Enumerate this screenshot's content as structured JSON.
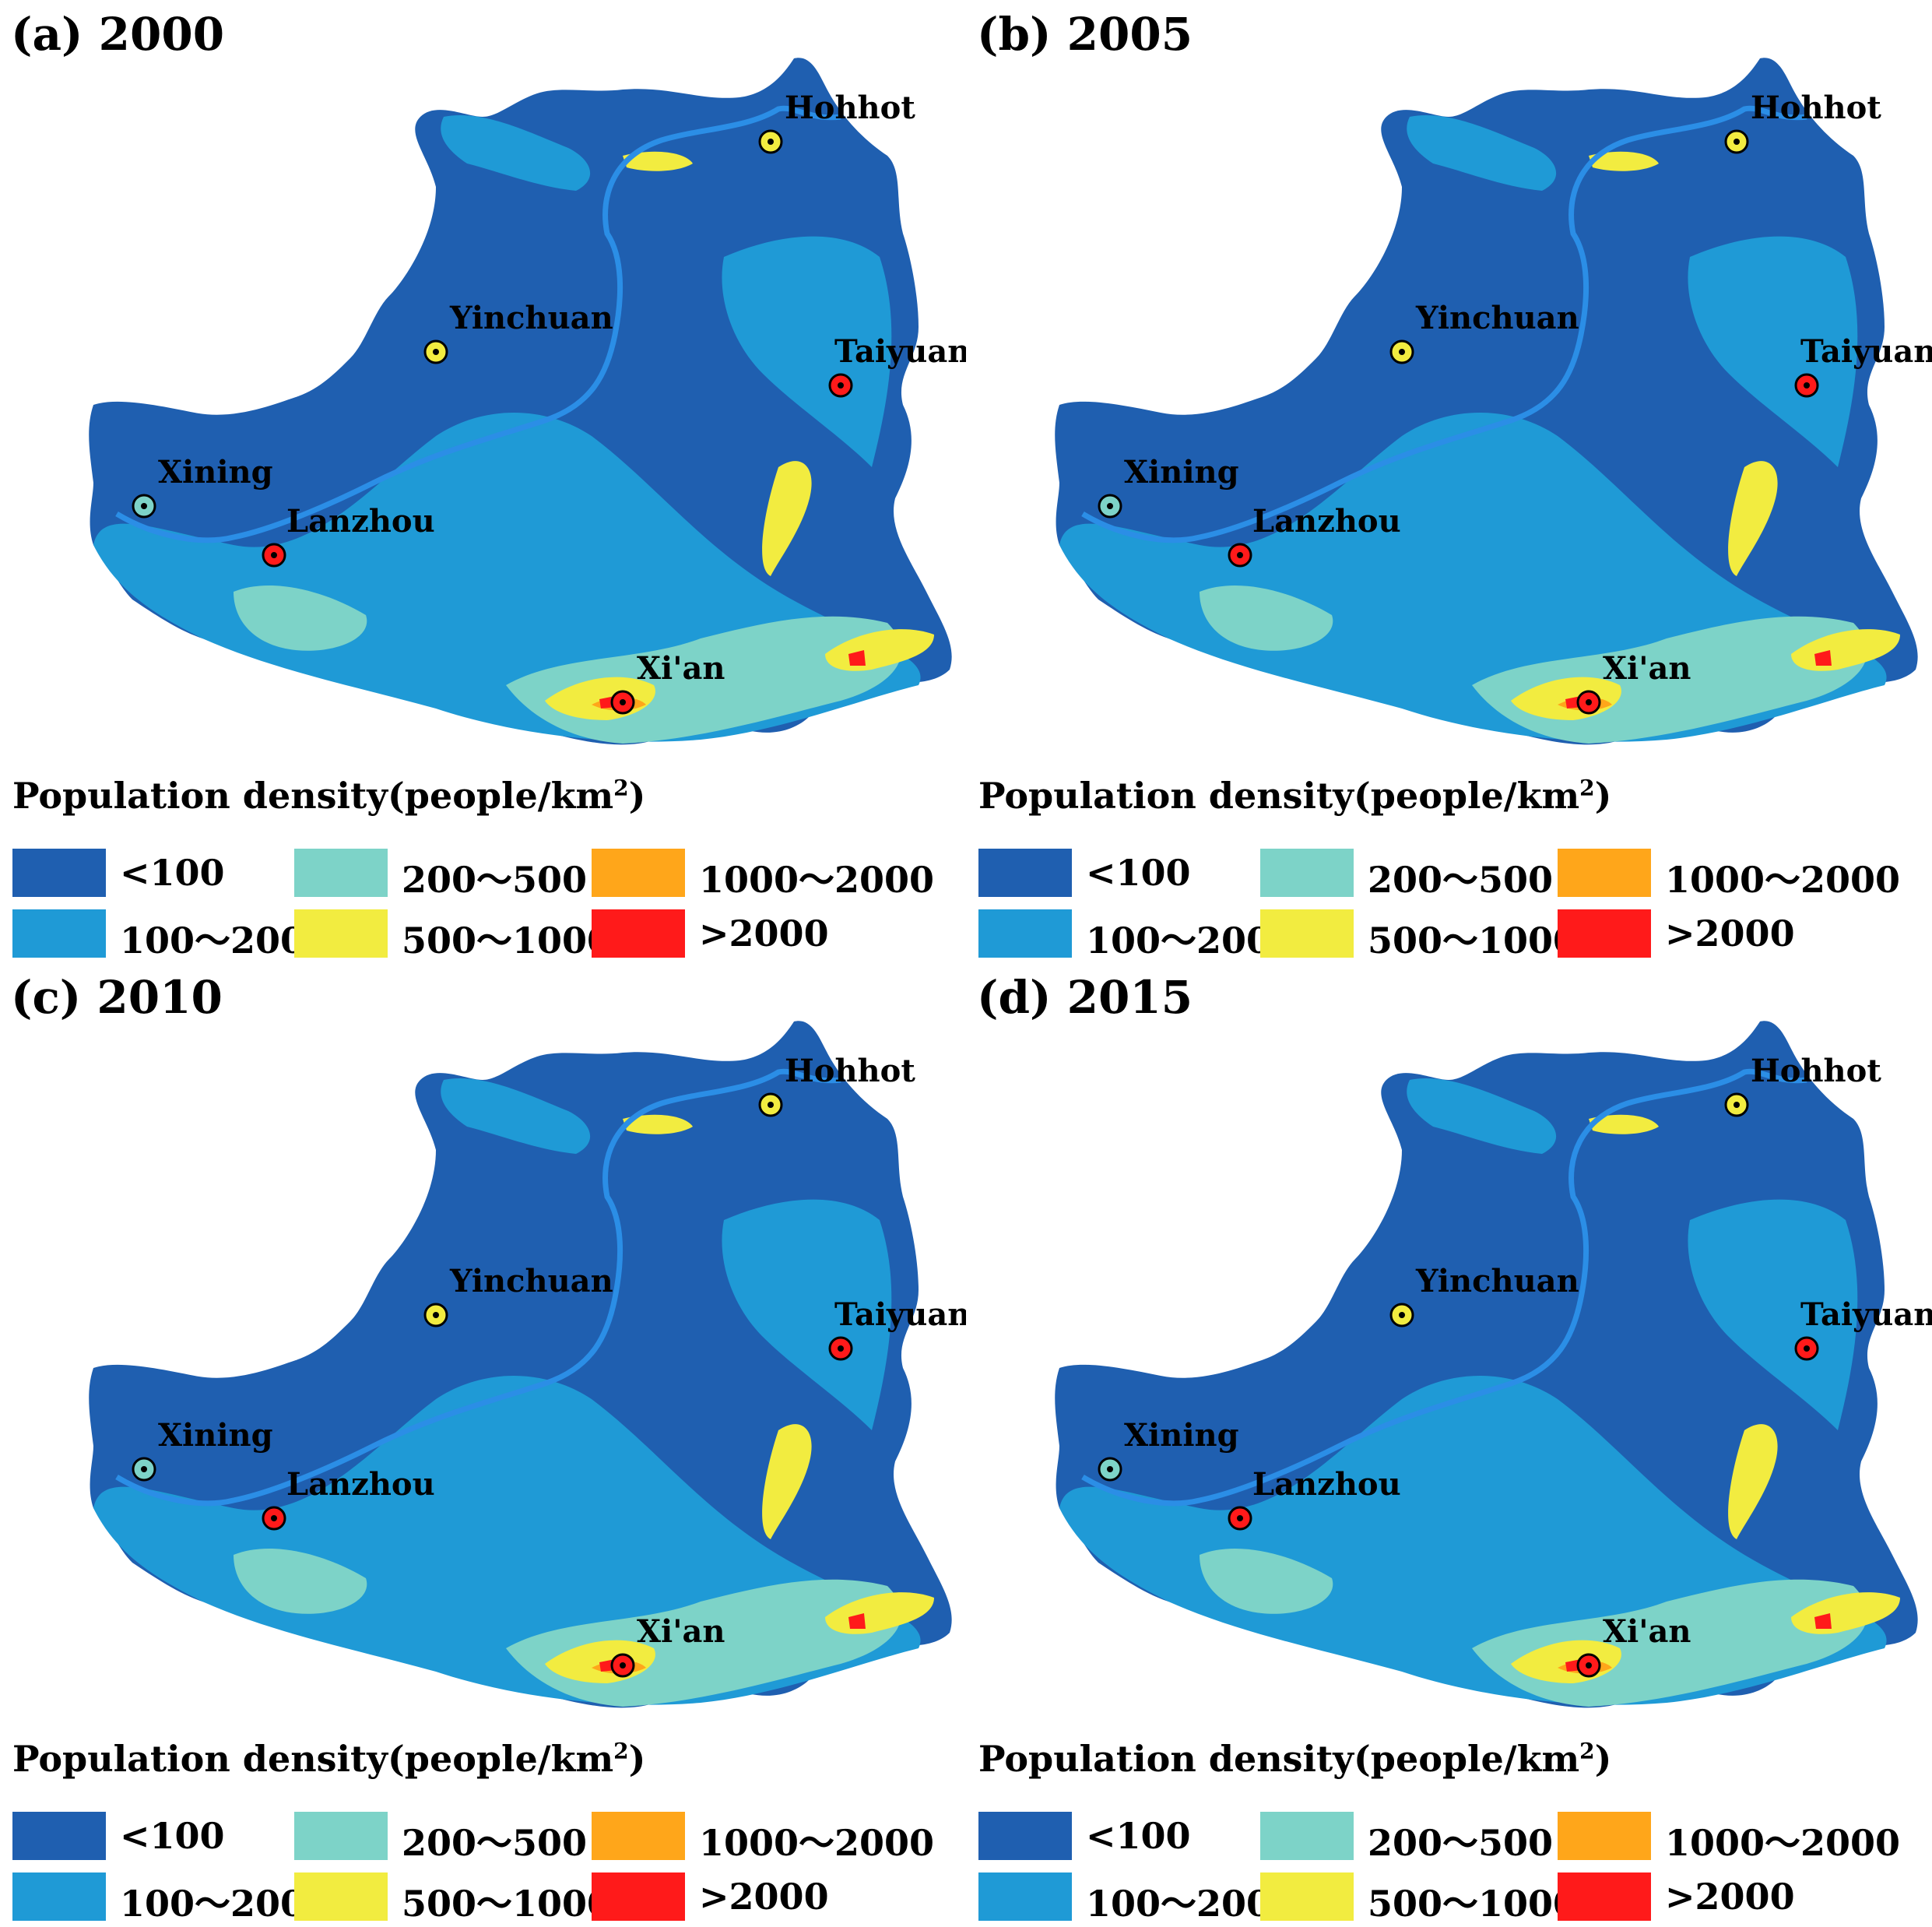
{
  "legend": {
    "title": "Population density(people/km",
    "title_sup": "2",
    "title_end": ")",
    "classes": [
      {
        "label": "<100",
        "color": "#1f5fb0"
      },
      {
        "label": "100～200",
        "color": "#1f9ad6"
      },
      {
        "label": "200～500",
        "color": "#7dd3c8"
      },
      {
        "label": "500～1000",
        "color": "#f2ec40"
      },
      {
        "label": "1000～2000",
        "color": "#ffa61a"
      },
      {
        "label": ">2000",
        "color": "#ff1a1a"
      }
    ]
  },
  "panels": [
    {
      "title": "(a) 2000"
    },
    {
      "title": "(b) 2005"
    },
    {
      "title": "(c) 2010"
    },
    {
      "title": "(d) 2015"
    }
  ],
  "cities": [
    {
      "name": "Hohhot",
      "icon": "city-marker-icon"
    },
    {
      "name": "Yinchuan",
      "icon": "city-marker-icon"
    },
    {
      "name": "Taiyuan",
      "icon": "city-marker-icon"
    },
    {
      "name": "Xining",
      "icon": "city-marker-icon"
    },
    {
      "name": "Lanzhou",
      "icon": "city-marker-icon"
    },
    {
      "name": "Xi'an",
      "icon": "city-marker-icon"
    }
  ],
  "colors": {
    "river": "#2b8ee6"
  }
}
